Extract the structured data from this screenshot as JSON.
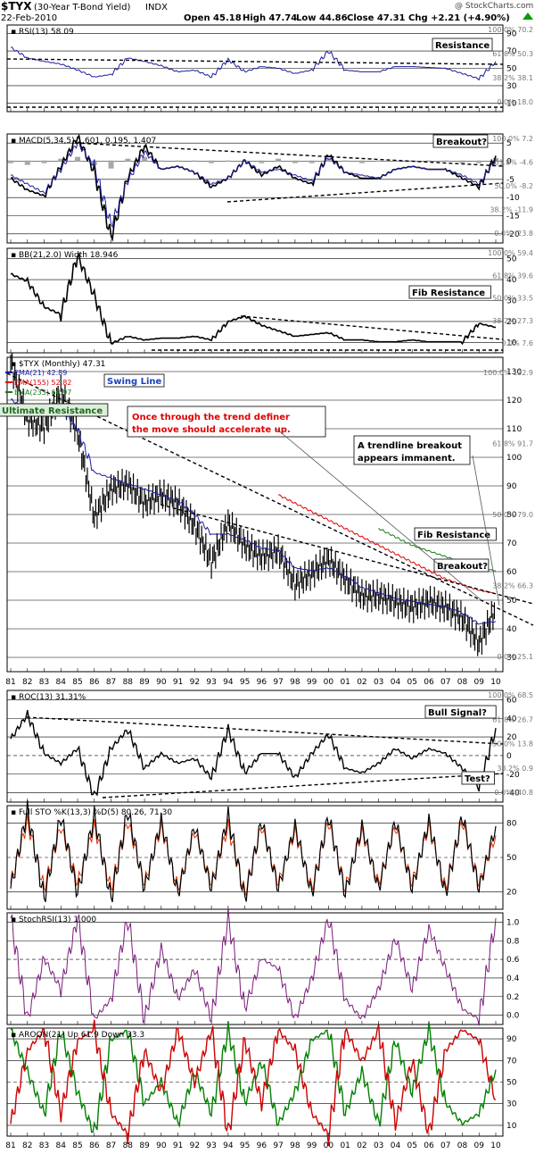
{
  "header": {
    "symbol": "$TYX",
    "name": "(30-Year T-Bond Yield)",
    "exchange": "INDX",
    "date": "22-Feb-2010",
    "open": "Open 45.18",
    "high": "High 47.74",
    "low": "Low 44.86",
    "close": "Close 47.31",
    "change": "Chg +2.21 (+4.90%)",
    "up_icon": "up-triangle",
    "watermark": "@ StockCharts.com"
  },
  "colors": {
    "black": "#000000",
    "ema21": "#1a1aa0",
    "ema155": "#e00000",
    "ema233": "#1a7a1a",
    "macd_hist": "#a8a8a8",
    "stochrsi_fill": "#8a80c8",
    "stochrsi_line": "#7a1a7a",
    "aroon_up": "#008000",
    "aroon_down": "#cc0000",
    "stoch_d": "#e03000",
    "swing_text": "#1a40c0",
    "red_text": "#e00000",
    "ultimate_bg": "#ddeedd",
    "ultimate_text": "#1a6a1a"
  },
  "x_axis": {
    "years": [
      "81",
      "82",
      "83",
      "84",
      "85",
      "86",
      "87",
      "88",
      "89",
      "90",
      "91",
      "92",
      "93",
      "94",
      "95",
      "96",
      "97",
      "98",
      "99",
      "00",
      "01",
      "02",
      "03",
      "04",
      "05",
      "06",
      "07",
      "08",
      "09",
      "10"
    ]
  },
  "chart_data": [
    {
      "type": "line",
      "panel": "rsi",
      "title": "RSI(13) 58.09",
      "ylim": [
        0,
        100
      ],
      "y_ticks": [
        "90",
        "70",
        "50",
        "30",
        "10"
      ],
      "fib_labels": [
        "100.0% 70.2",
        "61.8% 50.3",
        "38.2% 38.1",
        "0.0% 18.0"
      ],
      "annotations": [
        "Resistance"
      ],
      "x": [
        1981,
        1982,
        1983,
        1984,
        1985,
        1986,
        1987,
        1988,
        1989,
        1990,
        1991,
        1992,
        1993,
        1994,
        1995,
        1996,
        1997,
        1998,
        1999,
        2000,
        2001,
        2002,
        2003,
        2004,
        2005,
        2006,
        2007,
        2008,
        2009,
        2010
      ],
      "values": [
        74,
        62,
        58,
        55,
        48,
        40,
        43,
        62,
        58,
        53,
        46,
        48,
        40,
        60,
        46,
        52,
        50,
        44,
        48,
        70,
        48,
        46,
        46,
        52,
        52,
        51,
        50,
        44,
        38,
        58
      ]
    },
    {
      "type": "line",
      "panel": "macd",
      "title": "MACD(5,34,5) 1.601, 0.195, 1.407",
      "y_ticks": [
        "5",
        "0",
        "-5",
        "-10",
        "-15",
        "-20"
      ],
      "fib_labels": [
        "100.0% 7.2",
        "61.8% -4.6",
        "50.0% -8.2",
        "38.2% -11.9",
        "0.0% -23.8"
      ],
      "annotations": [
        "Breakout?"
      ],
      "series": [
        {
          "name": "MACD",
          "values": [
            -6,
            -10,
            -12,
            -2,
            8,
            -4,
            -26,
            -6,
            5,
            -3,
            -2,
            -4,
            -9,
            -6,
            0,
            -5,
            -2,
            -6,
            -8,
            2,
            -4,
            -6,
            -6,
            -3,
            -2,
            -3,
            -3,
            -6,
            -9,
            1.601
          ]
        },
        {
          "name": "Signal",
          "values": [
            -5,
            -8,
            -11,
            -3,
            6,
            -2,
            -22,
            -7,
            3,
            -3,
            -2,
            -4,
            -8,
            -6,
            0,
            -4,
            -3,
            -5,
            -7,
            1,
            -4,
            -5,
            -6,
            -3,
            -2,
            -3,
            -3,
            -5,
            -8,
            0.195
          ]
        }
      ]
    },
    {
      "type": "line",
      "panel": "bb_width",
      "title": "BB(21,2.0) Width 18.946",
      "y_ticks": [
        "50",
        "40",
        "30",
        "20",
        "10"
      ],
      "fib_labels": [
        "100.0% 59.4",
        "61.8% 39.6",
        "50.0% 33.5",
        "38.2% 27.3",
        "0.0% 7.6"
      ],
      "annotations": [
        "Fib Resistance"
      ],
      "x": [
        1981,
        1982,
        1983,
        1984,
        1985,
        1986,
        1987,
        1988,
        1989,
        1990,
        1991,
        1992,
        1993,
        1994,
        1995,
        1996,
        1997,
        1998,
        1999,
        2000,
        2001,
        2002,
        2003,
        2004,
        2005,
        2006,
        2007,
        2008,
        2009,
        2010
      ],
      "values": [
        48,
        44,
        30,
        26,
        58,
        36,
        10,
        14,
        12,
        13,
        13,
        14,
        12,
        22,
        25,
        20,
        17,
        14,
        15,
        16,
        12,
        12,
        11,
        11,
        12,
        11,
        11,
        11,
        21,
        18.946
      ]
    },
    {
      "type": "line",
      "panel": "price",
      "title": "$TYX (Monthly) 47.31",
      "legend": [
        "EMA(21) 42.89",
        "EMA(155) 52.82",
        "EMA(233) 60.97"
      ],
      "y_ticks": [
        "130",
        "120",
        "110",
        "100",
        "90",
        "80",
        "70",
        "60",
        "50",
        "40",
        "30"
      ],
      "fib_labels": [
        "100.0% 132.9",
        "61.8% 91.7",
        "50.0% 79.0",
        "38.2% 66.3",
        "0.0% 25.1"
      ],
      "annotations": [
        "Swing Line",
        "Ultimate Resistance",
        "Once through the trend definer the move should accelerate up.",
        "A trendline breakout appears  immanent.",
        "Fib Resistance",
        "Breakout?"
      ],
      "x": [
        1981,
        1982,
        1983,
        1984,
        1985,
        1986,
        1987,
        1988,
        1989,
        1990,
        1991,
        1992,
        1993,
        1994,
        1995,
        1996,
        1997,
        1998,
        1999,
        2000,
        2001,
        2002,
        2003,
        2004,
        2005,
        2006,
        2007,
        2008,
        2009,
        2010
      ],
      "values": [
        135,
        115,
        112,
        125,
        110,
        80,
        90,
        92,
        85,
        88,
        85,
        77,
        64,
        78,
        70,
        66,
        68,
        56,
        60,
        65,
        58,
        52,
        52,
        50,
        48,
        50,
        48,
        44,
        35,
        47.31
      ],
      "series": [
        {
          "name": "EMA(21)",
          "values": [
            122,
            118,
            117,
            119,
            111,
            96,
            94,
            92,
            90,
            88,
            86,
            81,
            74,
            74,
            72,
            69,
            68,
            62,
            61,
            62,
            59,
            55,
            53,
            51,
            50,
            49,
            48,
            46,
            42,
            42.89
          ]
        },
        {
          "name": "EMA(155)",
          "values": [
            null,
            null,
            null,
            null,
            null,
            null,
            null,
            null,
            null,
            null,
            null,
            null,
            null,
            null,
            null,
            null,
            88,
            85,
            82,
            79,
            76,
            73,
            70,
            67,
            64,
            61,
            58,
            56,
            54,
            52.82
          ]
        },
        {
          "name": "EMA(233)",
          "values": [
            null,
            null,
            null,
            null,
            null,
            null,
            null,
            null,
            null,
            null,
            null,
            null,
            null,
            null,
            null,
            null,
            null,
            null,
            null,
            null,
            null,
            null,
            76,
            73,
            70,
            68,
            66,
            64,
            62,
            60.97
          ]
        }
      ]
    },
    {
      "type": "line",
      "panel": "roc",
      "title": "ROC(13) 31.31%",
      "y_ticks": [
        "60",
        "40",
        "20",
        "0",
        "-20",
        "-40"
      ],
      "fib_labels": [
        "100.0% 68.5",
        "61.8% 26.7",
        "50.0% 13.8",
        "38.2% 0.9",
        "0.0% -40.8"
      ],
      "annotations": [
        "Bull Signal?",
        "Test?"
      ],
      "x": [
        1981,
        1982,
        1983,
        1984,
        1985,
        1986,
        1987,
        1988,
        1989,
        1990,
        1991,
        1992,
        1993,
        1994,
        1995,
        1996,
        1997,
        1998,
        1999,
        2000,
        2001,
        2002,
        2003,
        2004,
        2005,
        2006,
        2007,
        2008,
        2009,
        2010
      ],
      "values": [
        20,
        45,
        5,
        -5,
        10,
        -40,
        10,
        30,
        -10,
        5,
        -5,
        0,
        -20,
        30,
        -15,
        5,
        5,
        -20,
        5,
        25,
        -10,
        -15,
        -5,
        10,
        0,
        10,
        5,
        -10,
        -30,
        31.31
      ]
    },
    {
      "type": "line",
      "panel": "stoch",
      "title": "Full STO %K(13,3) %D(5) 80.26, 71.30",
      "y_ticks": [
        "80",
        "50",
        "20"
      ],
      "series": [
        {
          "name": "%K",
          "values": [
            20,
            95,
            10,
            90,
            15,
            90,
            10,
            95,
            20,
            85,
            15,
            80,
            20,
            90,
            10,
            85,
            20,
            80,
            15,
            90,
            15,
            80,
            20,
            85,
            20,
            85,
            15,
            90,
            20,
            80.26
          ]
        },
        {
          "name": "%D",
          "values": [
            25,
            85,
            20,
            80,
            25,
            80,
            20,
            85,
            25,
            80,
            20,
            75,
            25,
            80,
            15,
            80,
            25,
            75,
            20,
            85,
            20,
            75,
            25,
            80,
            25,
            80,
            20,
            85,
            25,
            71.3
          ]
        }
      ]
    },
    {
      "type": "area",
      "panel": "stochrsi",
      "title": "StochRSI(13) 1.000",
      "y_ticks": [
        "1.0",
        "0.8",
        "0.6",
        "0.4",
        "0.2",
        "0.0"
      ],
      "x": [
        1981,
        1982,
        1983,
        1984,
        1985,
        1986,
        1987,
        1988,
        1989,
        1990,
        1991,
        1992,
        1993,
        1994,
        1995,
        1996,
        1997,
        1998,
        1999,
        2000,
        2001,
        2002,
        2003,
        2004,
        2005,
        2006,
        2007,
        2008,
        2009,
        2010
      ],
      "values": [
        1,
        0,
        0.6,
        0.3,
        1,
        0,
        0.2,
        1,
        0,
        0.7,
        0.2,
        0.5,
        0,
        1,
        0.1,
        0.6,
        0.5,
        0,
        0.4,
        1,
        0.2,
        0,
        0.3,
        0.8,
        0.3,
        0.9,
        0.5,
        0.1,
        0,
        1.0
      ]
    },
    {
      "type": "line",
      "panel": "aroon",
      "title": "AROON(21) Up 61.9 Down 33.3",
      "y_ticks": [
        "90",
        "70",
        "50",
        "30",
        "10"
      ],
      "series": [
        {
          "name": "Up",
          "values": [
            100,
            60,
            20,
            100,
            40,
            0,
            90,
            100,
            30,
            50,
            10,
            60,
            20,
            100,
            30,
            70,
            10,
            40,
            90,
            100,
            20,
            60,
            10,
            90,
            40,
            100,
            30,
            10,
            20,
            61.9
          ]
        },
        {
          "name": "Down",
          "values": [
            10,
            80,
            100,
            20,
            90,
            100,
            20,
            0,
            80,
            40,
            100,
            50,
            100,
            0,
            90,
            30,
            100,
            80,
            20,
            0,
            100,
            70,
            100,
            10,
            70,
            0,
            80,
            100,
            90,
            33.3
          ]
        }
      ]
    }
  ]
}
